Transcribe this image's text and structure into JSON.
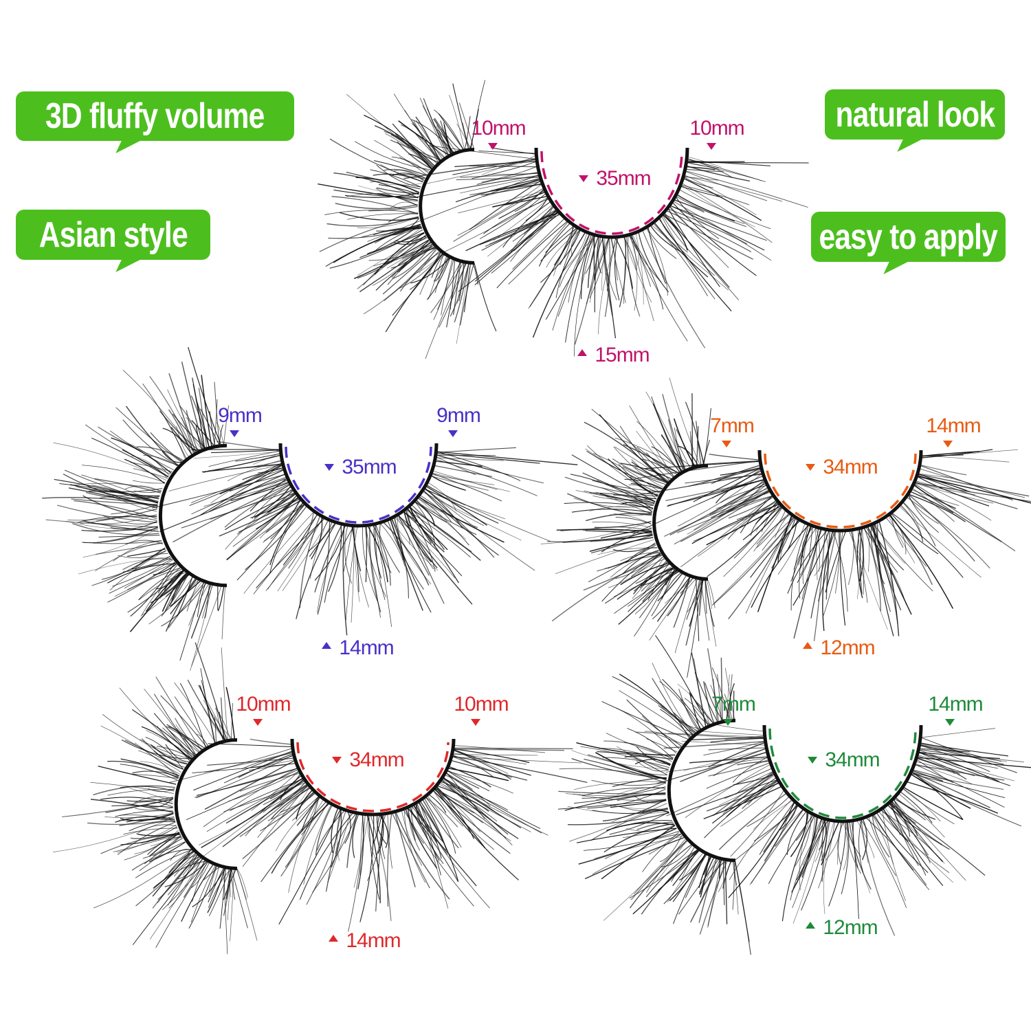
{
  "badges": [
    {
      "label": "3D fluffy volume"
    },
    {
      "label": "Asian style"
    },
    {
      "label": "natural look"
    },
    {
      "label": "easy to apply"
    }
  ],
  "badge_color": "#4cbf1e",
  "lash_sets": [
    {
      "color": "#c0126a",
      "left_end": "10mm",
      "right_end": "10mm",
      "band_length": "35mm",
      "center_length": "15mm"
    },
    {
      "color": "#4a2fc8",
      "left_end": "9mm",
      "right_end": "9mm",
      "band_length": "35mm",
      "center_length": "14mm"
    },
    {
      "color": "#e85a12",
      "left_end": "7mm",
      "right_end": "14mm",
      "band_length": "34mm",
      "center_length": "12mm"
    },
    {
      "color": "#e0282a",
      "left_end": "10mm",
      "right_end": "10mm",
      "band_length": "34mm",
      "center_length": "14mm"
    },
    {
      "color": "#1e8a3a",
      "left_end": "7mm",
      "right_end": "14mm",
      "band_length": "34mm",
      "center_length": "12mm"
    }
  ]
}
